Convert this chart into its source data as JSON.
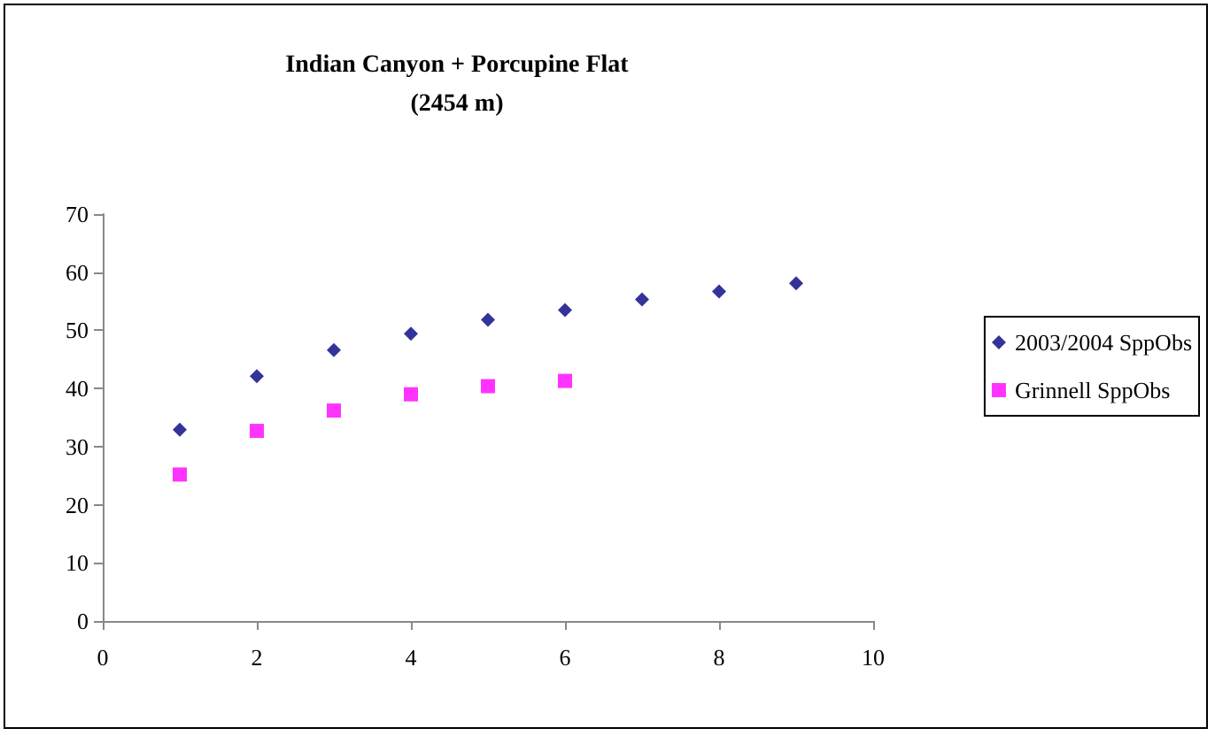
{
  "chart_data": {
    "type": "scatter",
    "title": "Indian Canyon + Porcupine Flat\n(2454 m)",
    "x": [
      1,
      2,
      3,
      4,
      5,
      6,
      7,
      8,
      9
    ],
    "series": [
      {
        "name": "2003/2004 SppObs",
        "color": "#000080",
        "marker": "diamond",
        "values": [
          32.9,
          42.1,
          46.6,
          49.4,
          51.8,
          53.5,
          55.3,
          56.7,
          58.1
        ]
      },
      {
        "name": "Grinnell SppObs",
        "color": "#ff00ff",
        "marker": "square",
        "values": [
          25.2,
          32.7,
          36.2,
          39.0,
          40.4,
          41.3,
          null,
          null,
          null
        ]
      }
    ],
    "xlim": [
      0,
      10
    ],
    "xticks": [
      0,
      2,
      4,
      6,
      8,
      10
    ],
    "ylim": [
      0,
      70
    ],
    "yticks": [
      0,
      10,
      20,
      30,
      40,
      50,
      60,
      70
    ],
    "grid": false,
    "legend": "right"
  }
}
